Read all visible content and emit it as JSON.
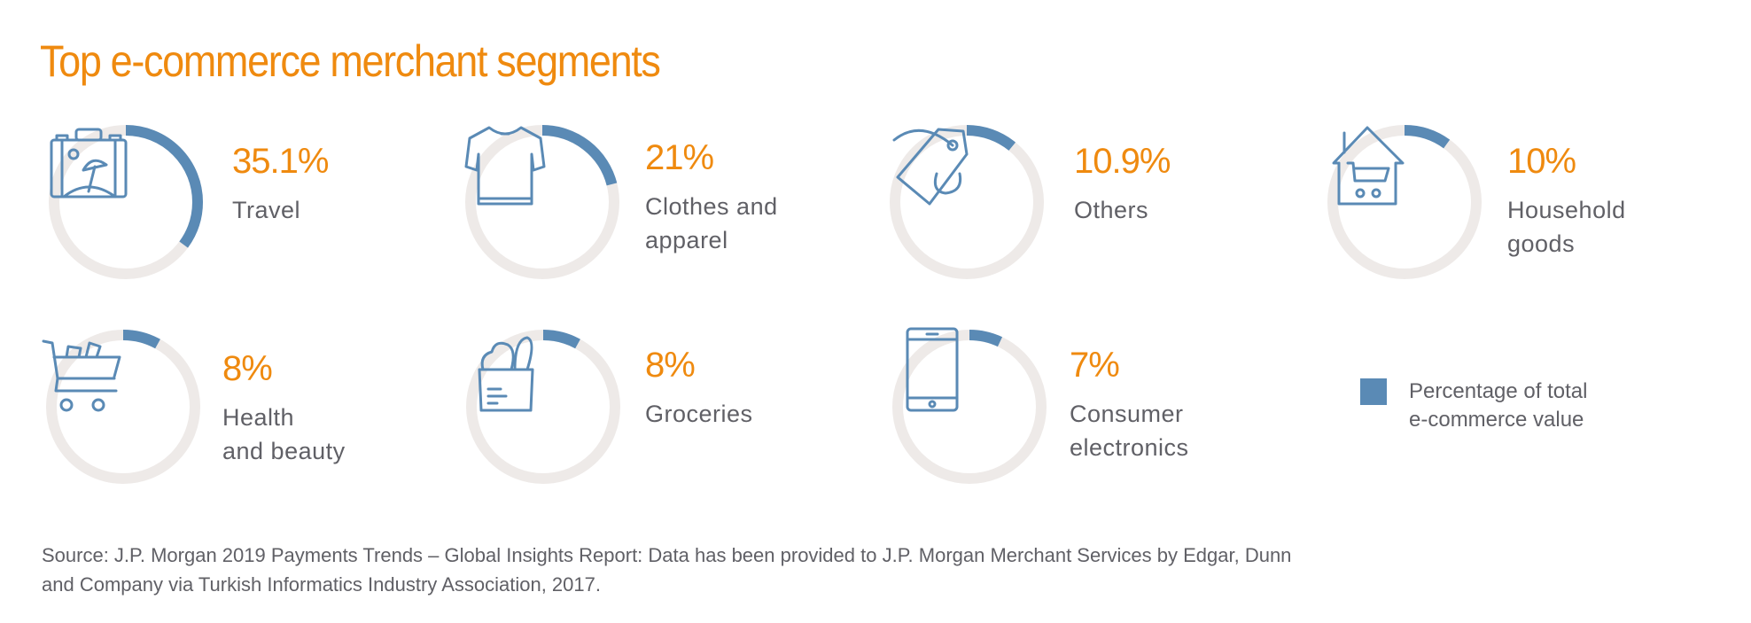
{
  "title": "Top e-commerce merchant segments",
  "colors": {
    "accent": "#ef8a0f",
    "value": "#5a8ab5",
    "track": "#eeeae8",
    "text": "#606066"
  },
  "chart_data": {
    "type": "pie",
    "title": "Top e-commerce merchant segments",
    "unit": "%",
    "segments": [
      {
        "label": "Travel",
        "label_lines": [
          "Travel"
        ],
        "value": 35.1,
        "display": "35.1%",
        "icon": "suitcase-icon"
      },
      {
        "label": "Clothes and apparel",
        "label_lines": [
          "Clothes and",
          "apparel"
        ],
        "value": 21,
        "display": "21%",
        "icon": "tshirt-icon"
      },
      {
        "label": "Others",
        "label_lines": [
          "Others"
        ],
        "value": 10.9,
        "display": "10.9%",
        "icon": "price-tag-icon"
      },
      {
        "label": "Household goods",
        "label_lines": [
          "Household",
          "goods"
        ],
        "value": 10,
        "display": "10%",
        "icon": "house-cart-icon"
      },
      {
        "label": "Health and beauty",
        "label_lines": [
          "Health",
          "and beauty"
        ],
        "value": 8,
        "display": "8%",
        "icon": "shopping-cart-icon"
      },
      {
        "label": "Groceries",
        "label_lines": [
          "Groceries"
        ],
        "value": 8,
        "display": "8%",
        "icon": "grocery-bag-icon"
      },
      {
        "label": "Consumer electronics",
        "label_lines": [
          "Consumer",
          "electronics"
        ],
        "value": 7,
        "display": "7%",
        "icon": "smartphone-icon"
      }
    ],
    "legend": {
      "label": "Percentage of total e-commerce value",
      "lines": [
        "Percentage of total",
        "e-commerce value"
      ],
      "placement": "right"
    }
  },
  "source": "Source: J.P. Morgan 2019 Payments Trends – Global Insights Report: Data has been provided to J.P. Morgan Merchant Services by Edgar, Dunn and Company via Turkish Informatics Industry Association, 2017."
}
